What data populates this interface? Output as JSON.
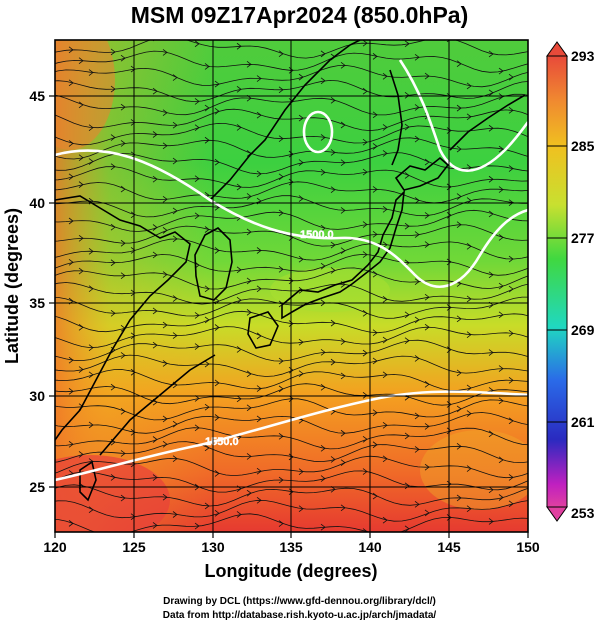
{
  "title": "MSM 09Z17Apr2024 (850.0hPa)",
  "x_axis": {
    "label": "Longitude (degrees)",
    "ticks": [
      "120",
      "125",
      "130",
      "135",
      "140",
      "145",
      "150"
    ],
    "range": [
      120,
      150
    ]
  },
  "y_axis": {
    "label": "Latitude  (degrees)",
    "ticks": [
      "25",
      "30",
      "35",
      "40",
      "45"
    ],
    "range": [
      22.4,
      47.6
    ]
  },
  "colorbar": {
    "labels": [
      "293",
      "285",
      "277",
      "269",
      "261",
      "253"
    ],
    "colors": [
      "#e84a3a",
      "#f08a30",
      "#f0c020",
      "#c8e030",
      "#40d840",
      "#20d8c0",
      "#2a6ae8",
      "#2a2ac0",
      "#c020c0",
      "#e040a0"
    ]
  },
  "contour_labels": [
    "1500.0",
    "1550.0"
  ],
  "credits": {
    "line1": "Drawing by DCL (https://www.gfd-dennou.org/library/dcl/)",
    "line2": "Data from http://database.rish.kyoto-u.ac.jp/arch/jmadata/"
  }
}
